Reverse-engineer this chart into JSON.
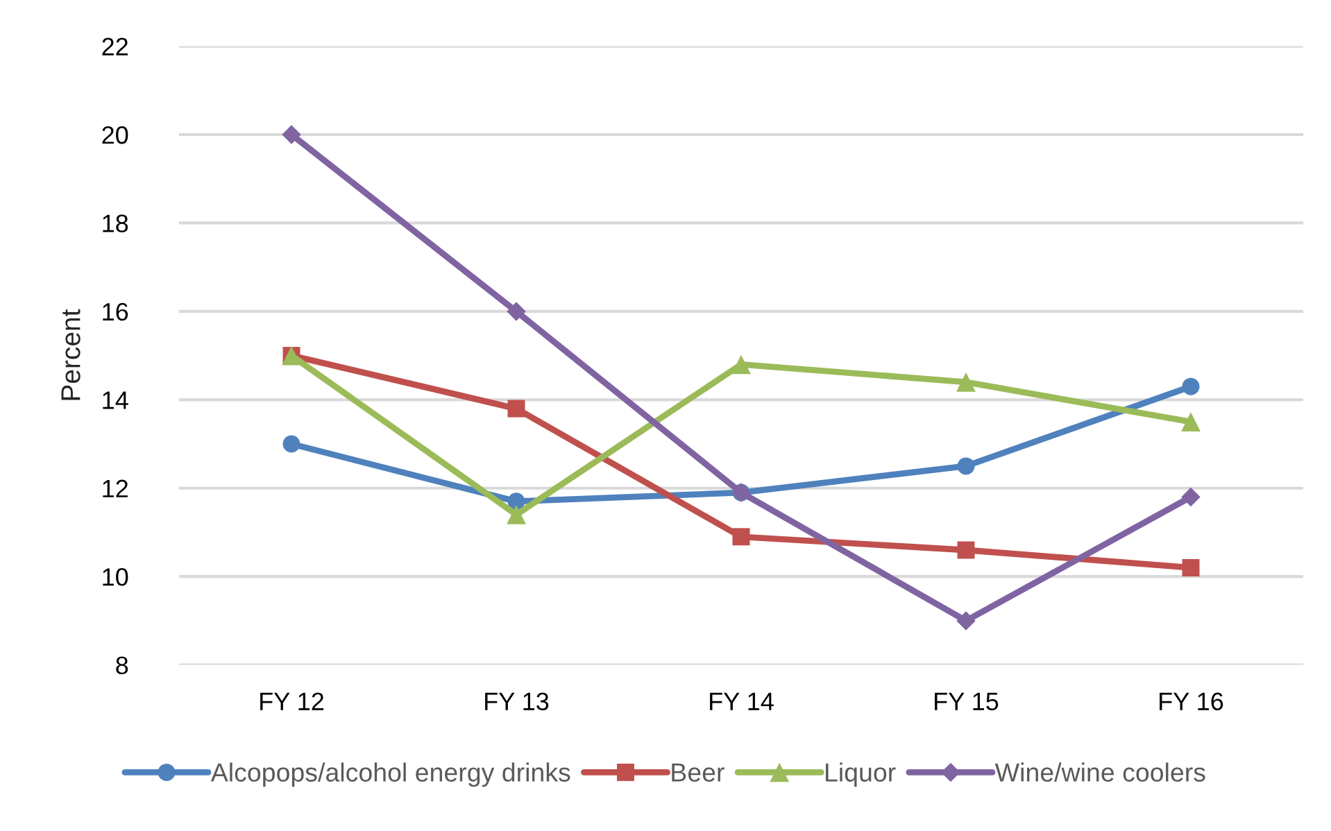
{
  "chart_data": {
    "type": "line",
    "ylabel": "Percent",
    "categories": [
      "FY 12",
      "FY 13",
      "FY 14",
      "FY 15",
      "FY 16"
    ],
    "series": [
      {
        "name": "Alcopops/alcohol energy drinks",
        "color": "#4f81bd",
        "marker": "circle",
        "values": [
          13.0,
          11.7,
          11.9,
          12.5,
          14.3
        ]
      },
      {
        "name": "Beer",
        "color": "#c0504d",
        "marker": "square",
        "values": [
          15.0,
          13.8,
          10.9,
          10.6,
          10.2
        ]
      },
      {
        "name": "Liquor",
        "color": "#9bbb59",
        "marker": "triangle",
        "values": [
          15.0,
          11.4,
          14.8,
          14.4,
          13.5
        ]
      },
      {
        "name": "Wine/wine coolers",
        "color": "#8064a2",
        "marker": "diamond",
        "values": [
          20.0,
          16.0,
          11.9,
          9.0,
          11.8
        ]
      }
    ],
    "ylim": [
      8,
      22
    ],
    "yticks": [
      8,
      10,
      12,
      14,
      16,
      18,
      20,
      22
    ],
    "grid": "y",
    "legend": "bottom",
    "line_style": "solid"
  }
}
